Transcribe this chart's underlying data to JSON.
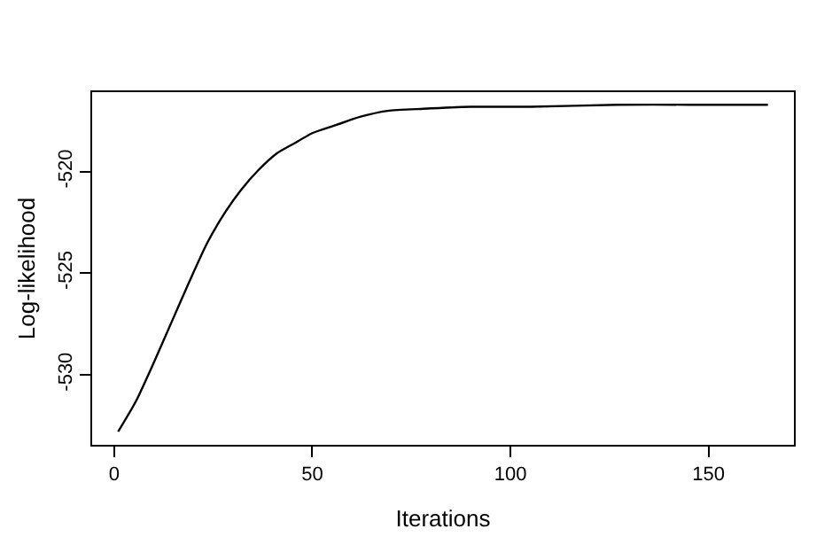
{
  "chart_data": {
    "type": "line",
    "xlabel": "Iterations",
    "ylabel": "Log-likelihood",
    "x": [
      1,
      5.5,
      10,
      14.5,
      19,
      23.5,
      28,
      32,
      36.5,
      41,
      45.5,
      50,
      56,
      62,
      69,
      78,
      90,
      105,
      127,
      145,
      165
    ],
    "series": [
      {
        "color": "#000000",
        "values": [
          -532.8,
          -531.3,
          -529.4,
          -527.4,
          -525.4,
          -523.5,
          -522.0,
          -520.9,
          -519.9,
          -519.1,
          -518.6,
          -518.1,
          -517.7,
          -517.3,
          -517.0,
          -516.9,
          -516.8,
          -516.8,
          -516.7,
          -516.7,
          -516.7
        ]
      }
    ],
    "xlim": [
      -5.56,
      171.56
    ],
    "ylim": [
      -533.45,
      -516.08
    ],
    "xticks": [
      0,
      50,
      100,
      150
    ],
    "yticks": [
      -530,
      -525,
      -520
    ],
    "grid": false,
    "marker": "none",
    "line_style": "solid"
  }
}
